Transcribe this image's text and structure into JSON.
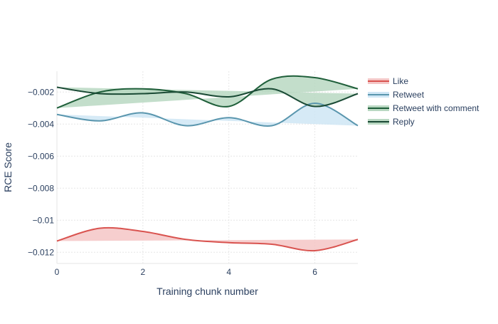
{
  "chart_data": {
    "type": "line",
    "xlabel": "Training chunk number",
    "ylabel": "RCE Score",
    "xlim": [
      0,
      7
    ],
    "ylim": [
      -0.0127,
      -0.0007
    ],
    "xticks": [
      0,
      2,
      4,
      6
    ],
    "xtick_labels": [
      "0",
      "2",
      "4",
      "6"
    ],
    "yticks": [
      -0.002,
      -0.004,
      -0.006,
      -0.008,
      -0.01,
      -0.012
    ],
    "ytick_labels": [
      "−0.002",
      "−0.004",
      "−0.006",
      "−0.008",
      "−0.01",
      "−0.012"
    ],
    "grid": true,
    "legend_position": "top-right",
    "x": [
      0,
      1,
      2,
      3,
      4,
      5,
      6,
      7
    ],
    "series": [
      {
        "name": "Like",
        "color": "#d9534f",
        "fill_color": "#f4c6c6",
        "values": [
          -0.0113,
          -0.0105,
          -0.0107,
          -0.0112,
          -0.0114,
          -0.0115,
          -0.0119,
          -0.0112
        ]
      },
      {
        "name": "Retweet",
        "color": "#5a96ae",
        "fill_color": "#cfe6f5",
        "values": [
          -0.0034,
          -0.0038,
          -0.0033,
          -0.0041,
          -0.0036,
          -0.0041,
          -0.0027,
          -0.0041
        ]
      },
      {
        "name": "Retweet with comment",
        "color": "#1f5f3a",
        "fill_color": "#b9d8c2",
        "values": [
          -0.003,
          -0.002,
          -0.0018,
          -0.0021,
          -0.0029,
          -0.0012,
          -0.0011,
          -0.0018
        ]
      },
      {
        "name": "Reply",
        "color": "#1a4a35",
        "fill_color": "#b9d8c2",
        "values": [
          -0.0017,
          -0.0021,
          -0.0021,
          -0.002,
          -0.0023,
          -0.0018,
          -0.0029,
          -0.0021
        ]
      }
    ]
  }
}
